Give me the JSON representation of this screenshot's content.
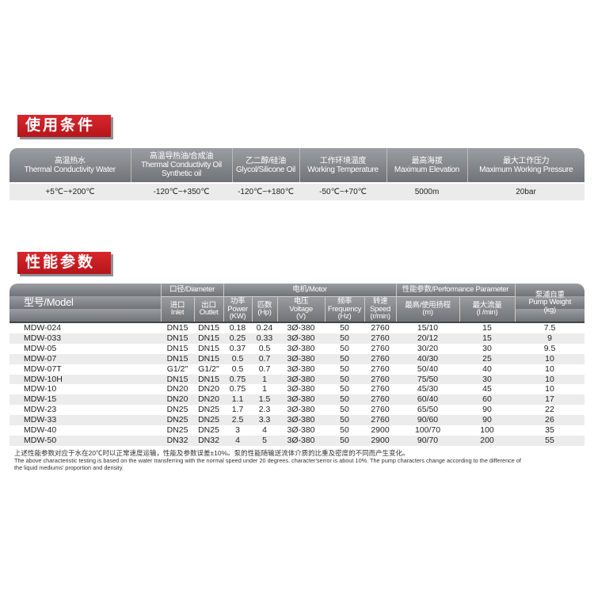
{
  "conditions": {
    "title": "使用条件",
    "headers": [
      [
        "高温热水",
        "Thermal Conductivity Water"
      ],
      [
        "高温导热油/合成油",
        "Thermal Conductivity Oil",
        "Synthetic oil"
      ],
      [
        "乙二醇/硅油",
        "Glycol/Silicone Oil"
      ],
      [
        "工作环境温度",
        "Working Temperature"
      ],
      [
        "最高海拔",
        "Maximum Elevation"
      ],
      [
        "最大工作压力",
        "Maximum Working Pressure"
      ]
    ],
    "values": [
      "+5℃~+200℃",
      "-120℃~+350℃",
      "-120℃~+180℃",
      "-50℃~+70℃",
      "5000m",
      "20bar"
    ]
  },
  "performance": {
    "title": "性能参数",
    "groups": {
      "model": "型号/Model",
      "diameter": "口径/Diameter",
      "motor": "电机/Motor",
      "perf": "性能参数/Performance Parameter",
      "weight": [
        "泵浦自重",
        "Pump Weight",
        "(kg)"
      ]
    },
    "subheaders": [
      [
        "进口",
        "Inlet"
      ],
      [
        "出口",
        "Outlet"
      ],
      [
        "功率",
        "Power",
        "(KW)"
      ],
      [
        "匹数",
        "(Hp)"
      ],
      [
        "电压",
        "Voltage",
        "(V)"
      ],
      [
        "频率",
        "Frequency",
        "(Hz)"
      ],
      [
        "转速",
        "Speed",
        "(r/min)"
      ],
      [
        "最高/使用扬程",
        "(m)"
      ],
      [
        "最大流量",
        "(l /min)"
      ]
    ],
    "rows": [
      [
        "MDW-024",
        "DN15",
        "DN15",
        "0.18",
        "0.24",
        "3Ø-380",
        "50",
        "2760",
        "15/10",
        "15",
        "7.5"
      ],
      [
        "MDW-033",
        "DN15",
        "DN15",
        "0.25",
        "0.33",
        "3Ø-380",
        "50",
        "2760",
        "20/12",
        "15",
        "9"
      ],
      [
        "MDW-05",
        "DN15",
        "DN15",
        "0.37",
        "0.5",
        "3Ø-380",
        "50",
        "2760",
        "30/20",
        "30",
        "9.5"
      ],
      [
        "MDW-07",
        "DN15",
        "DN15",
        "0.5",
        "0.7",
        "3Ø-380",
        "50",
        "2760",
        "40/30",
        "25",
        "10"
      ],
      [
        "MDW-07T",
        "G1/2\"",
        "G1/2\"",
        "0.5",
        "0.7",
        "3Ø-380",
        "50",
        "2760",
        "50/40",
        "40",
        "10"
      ],
      [
        "MDW-10H",
        "DN15",
        "DN15",
        "0.75",
        "1",
        "3Ø-380",
        "50",
        "2760",
        "75/50",
        "30",
        "10"
      ],
      [
        "MDW-10",
        "DN20",
        "DN20",
        "0.75",
        "1",
        "3Ø-380",
        "50",
        "2760",
        "45/30",
        "45",
        "10"
      ],
      [
        "MDW-15",
        "DN20",
        "DN20",
        "1.1",
        "1.5",
        "3Ø-380",
        "50",
        "2760",
        "60/40",
        "60",
        "17"
      ],
      [
        "MDW-23",
        "DN25",
        "DN25",
        "1.7",
        "2.3",
        "3Ø-380",
        "50",
        "2760",
        "65/50",
        "90",
        "22"
      ],
      [
        "MDW-33",
        "DN25",
        "DN25",
        "2.5",
        "3.3",
        "3Ø-380",
        "50",
        "2760",
        "90/60",
        "90",
        "26"
      ],
      [
        "MDW-40",
        "DN25",
        "DN25",
        "3",
        "4",
        "3Ø-380",
        "50",
        "2900",
        "100/70",
        "100",
        "35"
      ],
      [
        "MDW-50",
        "DN32",
        "DN32",
        "4",
        "5",
        "3Ø-380",
        "50",
        "2900",
        "90/70",
        "200",
        "55"
      ]
    ],
    "note_cn": "上述性能参数对应于水在20℃时以正常速度运输，性能及参数误差±10%。泵的性能随输送流体介质的比重及密度的不同而产生变化。",
    "note_en": "The above characteristic testing is based on the water transferring with the normal speed under 20 degrees.  character'serror is about 10%. The pump characters change according to the difference of the liquid mediums'  proportion and density."
  },
  "colors": {
    "accent": "#c81e24",
    "header": "#808386"
  }
}
